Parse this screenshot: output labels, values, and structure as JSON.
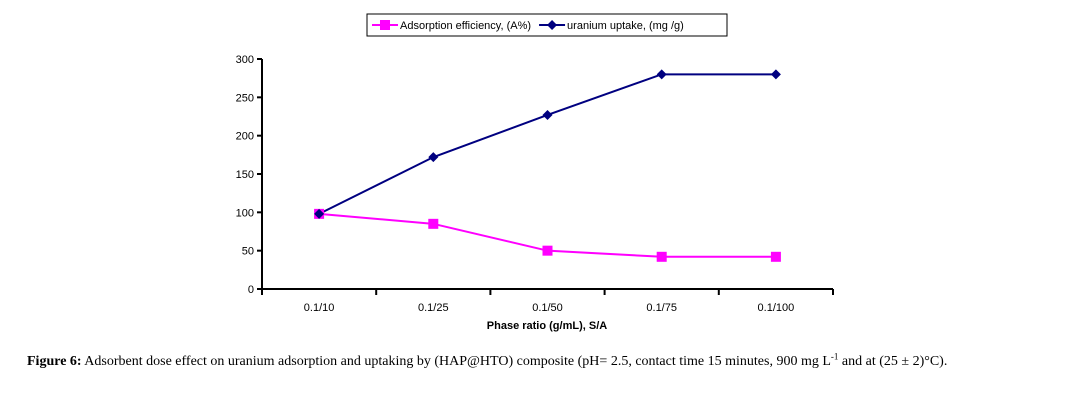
{
  "chart_data": {
    "type": "line",
    "title": "",
    "xlabel": "Phase ratio (g/mL), S/A",
    "ylabel": "",
    "categories": [
      "0.1/10",
      "0.1/25",
      "0.1/50",
      "0.1/75",
      "0.1/100"
    ],
    "ylim": [
      0,
      300
    ],
    "yticks": [
      0,
      50,
      100,
      150,
      200,
      250,
      300
    ],
    "grid": false,
    "legend_position": "top-center",
    "series": [
      {
        "name": "Adsorption efficiency, (A%)",
        "color": "#ff00ff",
        "marker": "square",
        "values": [
          98,
          85,
          50,
          42,
          42
        ]
      },
      {
        "name": "uranium uptake, (mg /g)",
        "color": "#000080",
        "marker": "diamond",
        "values": [
          98,
          172,
          227,
          280,
          280
        ]
      }
    ]
  },
  "caption": {
    "label": "Figure 6:",
    "text_before_sup": " Adsorbent dose effect on uranium adsorption and uptaking by (HAP@HTO) composite (pH= 2.5, contact time 15 minutes, 900 mg L",
    "sup": "-1",
    "text_after_sup": " and at (25 ± 2)°C)."
  }
}
